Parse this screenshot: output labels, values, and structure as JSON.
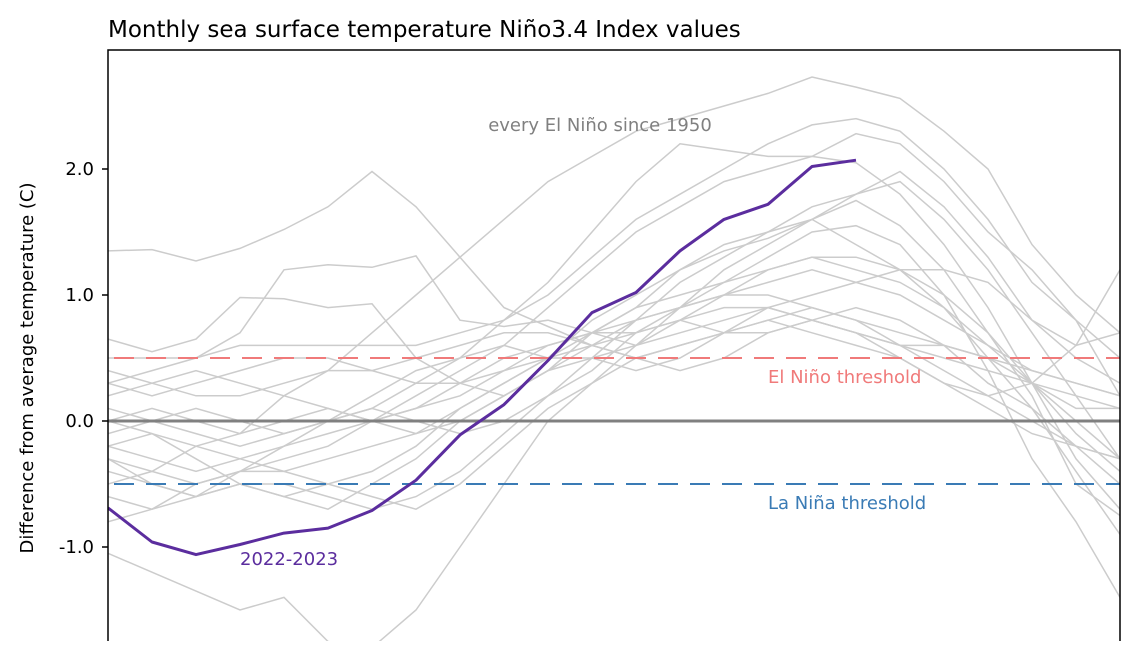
{
  "chart_data": {
    "type": "line",
    "title": "Monthly sea surface temperature Niño3.4 Index values",
    "ylabel": "Difference from average temperature (C)",
    "xlabel": "",
    "ylim": [
      -1.75,
      2.94
    ],
    "yticks": [
      -1.0,
      0.0,
      1.0,
      2.0
    ],
    "ytick_labels": [
      "-1.0",
      "0.0",
      "1.0",
      "2.0"
    ],
    "grid": false,
    "zero_line": {
      "value": 0.0,
      "color": "#808080"
    },
    "thresholds": [
      {
        "label": "El Niño threshold",
        "value": 0.5,
        "color": "#f07a7a"
      },
      {
        "label": "La Niña threshold",
        "value": -0.5,
        "color": "#3a7bb5"
      }
    ],
    "background_series_label": "every El Niño since 1950",
    "background_series_color": "#cccccc",
    "months_shown": 24,
    "background_series": [
      [
        -0.5,
        -0.4,
        -0.2,
        -0.1,
        0.2,
        0.4,
        0.7,
        1.0,
        1.3,
        1.6,
        1.9,
        2.1,
        2.3,
        2.4,
        2.5,
        2.6,
        2.73,
        2.65,
        2.56,
        2.3,
        2.0,
        1.4,
        1.0,
        0.7
      ],
      [
        0.5,
        0.5,
        0.5,
        0.6,
        0.6,
        0.6,
        0.6,
        0.6,
        0.7,
        0.8,
        1.0,
        1.3,
        1.6,
        1.8,
        2.0,
        2.2,
        2.35,
        2.4,
        2.3,
        2.0,
        1.6,
        1.1,
        0.8,
        0.5
      ],
      [
        -0.1,
        0.0,
        0.1,
        0.0,
        -0.1,
        0.0,
        0.1,
        0.3,
        0.5,
        0.8,
        1.1,
        1.5,
        1.9,
        2.2,
        2.15,
        2.1,
        2.1,
        2.28,
        2.2,
        1.9,
        1.5,
        1.2,
        0.8,
        0.2
      ],
      [
        1.35,
        1.36,
        1.27,
        1.37,
        1.52,
        1.7,
        1.98,
        1.7,
        1.3,
        0.9,
        0.75,
        0.6,
        0.5,
        0.4,
        0.5,
        0.7,
        0.8,
        0.7,
        0.6,
        0.6,
        0.5,
        0.3,
        0.1,
        0.1
      ],
      [
        -1.05,
        -1.2,
        -1.35,
        -1.5,
        -1.4,
        -1.75,
        -1.8,
        -1.5,
        -1.0,
        -0.5,
        0.0,
        0.3,
        0.6,
        0.9,
        1.2,
        1.4,
        1.6,
        1.8,
        1.9,
        1.6,
        1.2,
        0.7,
        0.2,
        -0.3
      ],
      [
        0.65,
        0.55,
        0.65,
        0.98,
        0.97,
        0.9,
        0.93,
        0.5,
        0.3,
        0.2,
        0.4,
        0.7,
        0.9,
        1.2,
        1.4,
        1.5,
        1.7,
        1.8,
        1.98,
        1.7,
        1.3,
        0.8,
        0.6,
        0.7
      ],
      [
        0.3,
        0.4,
        0.5,
        0.7,
        1.2,
        1.24,
        1.22,
        1.31,
        0.8,
        0.75,
        0.8,
        0.7,
        0.6,
        0.8,
        1.0,
        1.2,
        1.3,
        1.2,
        1.1,
        0.9,
        0.5,
        0.1,
        -0.4,
        -0.9
      ],
      [
        -0.3,
        -0.4,
        -0.5,
        -0.4,
        -0.3,
        -0.2,
        0.0,
        0.2,
        0.4,
        0.6,
        0.9,
        1.2,
        1.5,
        1.7,
        1.9,
        2.0,
        2.1,
        2.05,
        1.8,
        1.4,
        0.9,
        0.3,
        -0.3,
        -0.7
      ],
      [
        0.0,
        -0.1,
        -0.3,
        -0.5,
        -0.6,
        -0.5,
        -0.4,
        -0.2,
        0.1,
        0.3,
        0.5,
        0.8,
        1.0,
        1.2,
        1.35,
        1.45,
        1.6,
        1.75,
        1.55,
        1.2,
        0.7,
        0.2,
        -0.5,
        -0.75
      ],
      [
        -0.2,
        -0.3,
        -0.4,
        -0.3,
        -0.2,
        -0.1,
        0.0,
        0.1,
        0.3,
        0.5,
        0.6,
        0.7,
        0.8,
        0.9,
        1.0,
        1.1,
        1.2,
        1.1,
        1.0,
        0.8,
        0.6,
        0.4,
        0.3,
        0.2
      ],
      [
        0.4,
        0.3,
        0.2,
        0.2,
        0.3,
        0.4,
        0.4,
        0.3,
        0.3,
        0.4,
        0.5,
        0.5,
        0.6,
        0.7,
        0.8,
        0.9,
        0.8,
        0.7,
        0.6,
        0.5,
        0.4,
        0.3,
        0.2,
        0.1
      ],
      [
        -0.4,
        -0.5,
        -0.6,
        -0.5,
        -0.6,
        -0.7,
        -0.5,
        -0.3,
        0.0,
        0.2,
        0.4,
        0.5,
        0.4,
        0.5,
        0.7,
        0.8,
        0.9,
        0.8,
        0.6,
        0.4,
        0.2,
        0.0,
        -0.2,
        -0.3
      ],
      [
        0.1,
        0.0,
        -0.1,
        -0.2,
        -0.1,
        0.0,
        0.2,
        0.4,
        0.5,
        0.6,
        0.5,
        0.6,
        0.8,
        0.9,
        1.0,
        1.0,
        0.9,
        0.8,
        0.7,
        0.6,
        0.5,
        0.4,
        0.3,
        0.2
      ],
      [
        -0.6,
        -0.7,
        -0.6,
        -0.5,
        -0.5,
        -0.6,
        -0.7,
        -0.6,
        -0.4,
        -0.1,
        0.2,
        0.5,
        0.8,
        1.1,
        1.3,
        1.5,
        1.6,
        1.4,
        1.2,
        0.9,
        0.6,
        0.3,
        0.0,
        -0.3
      ],
      [
        0.2,
        0.3,
        0.4,
        0.3,
        0.2,
        0.1,
        0.0,
        -0.1,
        0.0,
        0.2,
        0.4,
        0.6,
        0.7,
        0.8,
        0.9,
        0.9,
        1.0,
        1.1,
        1.2,
        1.2,
        1.1,
        0.8,
        0.5,
        0.3
      ],
      [
        -0.8,
        -0.7,
        -0.5,
        -0.4,
        -0.4,
        -0.5,
        -0.6,
        -0.7,
        -0.5,
        -0.2,
        0.1,
        0.3,
        0.5,
        0.6,
        0.7,
        0.8,
        0.7,
        0.6,
        0.5,
        0.3,
        0.1,
        -0.1,
        -0.2,
        -0.3
      ],
      [
        0.0,
        0.1,
        0.0,
        -0.1,
        0.0,
        0.1,
        0.0,
        0.1,
        0.2,
        0.4,
        0.6,
        0.7,
        0.7,
        0.8,
        0.7,
        0.7,
        0.8,
        0.9,
        0.8,
        0.6,
        0.3,
        0.1,
        -0.2,
        -0.5
      ],
      [
        -0.2,
        -0.1,
        -0.2,
        -0.3,
        -0.4,
        -0.3,
        -0.2,
        -0.1,
        0.1,
        0.3,
        0.5,
        0.7,
        0.9,
        1.0,
        1.1,
        1.2,
        1.3,
        1.3,
        1.2,
        1.0,
        0.7,
        0.3,
        -0.1,
        -0.4
      ],
      [
        0.3,
        0.2,
        0.3,
        0.4,
        0.5,
        0.5,
        0.4,
        0.5,
        0.6,
        0.7,
        0.7,
        0.6,
        0.5,
        0.6,
        0.7,
        0.9,
        0.8,
        0.7,
        0.5,
        0.3,
        0.2,
        0.3,
        0.6,
        1.2
      ],
      [
        -0.3,
        -0.5,
        -0.6,
        -0.4,
        -0.2,
        0.0,
        0.1,
        0.0,
        -0.1,
        0.0,
        0.2,
        0.4,
        0.7,
        0.9,
        1.1,
        1.3,
        1.5,
        1.55,
        1.4,
        1.0,
        0.4,
        -0.3,
        -0.8,
        -1.4
      ]
    ],
    "series": [
      {
        "name": "2022-2023",
        "color": "#5b2d9e",
        "values": [
          -0.69,
          -0.96,
          -1.06,
          -0.98,
          -0.89,
          -0.85,
          -0.71,
          -0.47,
          -0.11,
          0.13,
          0.48,
          0.86,
          1.02,
          1.35,
          1.6,
          1.72,
          2.02,
          2.07
        ]
      }
    ]
  }
}
